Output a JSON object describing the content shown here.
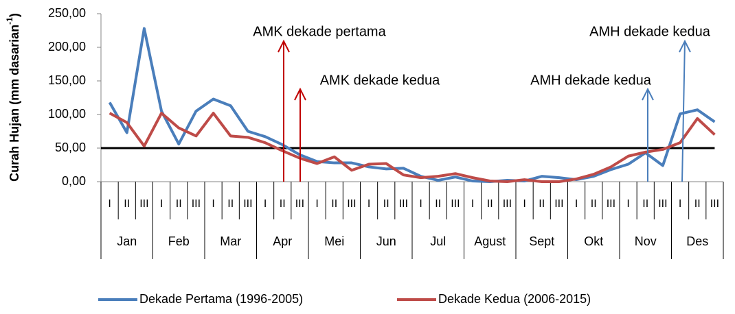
{
  "chart_data": {
    "type": "line",
    "y_label": {
      "text": "Curah Hujan (mm dasarian",
      "sup": "-1",
      "end": ")"
    },
    "categories": [
      "I",
      "II",
      "III",
      "I",
      "II",
      "III",
      "I",
      "II",
      "III",
      "I",
      "II",
      "III",
      "I",
      "II",
      "III",
      "I",
      "II",
      "III",
      "I",
      "II",
      "III",
      "I",
      "II",
      "III",
      "I",
      "II",
      "III",
      "I",
      "II",
      "III",
      "I",
      "II",
      "III",
      "I",
      "II",
      "III"
    ],
    "months": [
      "Jan",
      "Feb",
      "Mar",
      "Apr",
      "Mei",
      "Jun",
      "Jul",
      "Agust",
      "Sept",
      "Okt",
      "Nov",
      "Des"
    ],
    "series": [
      {
        "name": "Dekade Pertama (1996-2005)",
        "color": "#4a7ebb",
        "values": [
          118,
          73,
          228,
          105,
          56,
          105,
          123,
          113,
          75,
          67,
          55,
          40,
          30,
          28,
          28,
          22,
          19,
          20,
          8,
          2,
          7,
          1,
          0,
          2,
          1,
          8,
          6,
          3,
          8,
          18,
          26,
          43,
          24,
          101,
          107,
          89
        ]
      },
      {
        "name": "Dekade Kedua (2006-2015)",
        "color": "#be4b48",
        "values": [
          102,
          88,
          53,
          102,
          80,
          68,
          102,
          68,
          66,
          58,
          46,
          35,
          27,
          37,
          17,
          26,
          27,
          10,
          6,
          8,
          12,
          6,
          1,
          0,
          3,
          0,
          0,
          4,
          11,
          22,
          38,
          44,
          48,
          58,
          94,
          70
        ]
      }
    ],
    "reference_line": 50,
    "ylim": [
      0,
      250
    ],
    "yticks": [
      {
        "value": 0,
        "label": "0,00"
      },
      {
        "value": 50,
        "label": "50,00"
      },
      {
        "value": 100,
        "label": "100,00"
      },
      {
        "value": 150,
        "label": "150,00"
      },
      {
        "value": 200,
        "label": "200,00"
      },
      {
        "value": 250,
        "label": "250,00"
      }
    ],
    "annotations": [
      "AMK dekade pertama",
      "AMK dekade kedua",
      "AMH dekade kedua",
      "AMH dekade kedua"
    ]
  }
}
